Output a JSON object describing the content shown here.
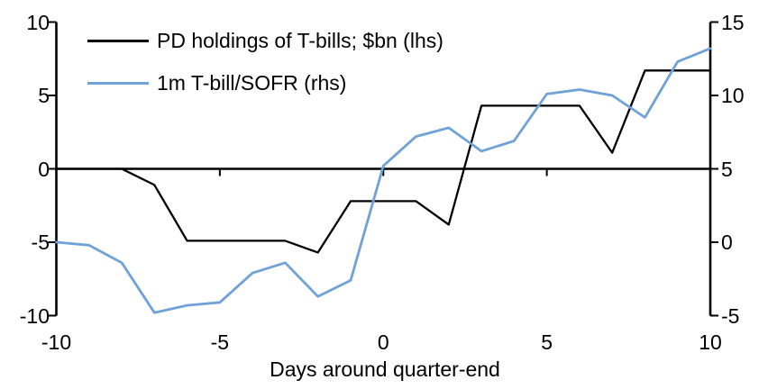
{
  "chart_data": {
    "type": "line",
    "title": "",
    "xlabel": "Days around quarter-end",
    "background": "#FFFFFF",
    "axis_color": "#000000",
    "grid": false,
    "legend_position": "top-left",
    "x": [
      -10,
      -9,
      -8,
      -7,
      -6,
      -5,
      -4,
      -3,
      -2,
      -1,
      0,
      1,
      2,
      3,
      4,
      5,
      6,
      7,
      8,
      9,
      10
    ],
    "x_range": [
      -10,
      10
    ],
    "x_ticks": [
      -10,
      -5,
      0,
      5,
      10
    ],
    "x_tick_labels": [
      "-10",
      "-5",
      "0",
      "5",
      "10"
    ],
    "left_axis": {
      "range": [
        -10,
        10
      ],
      "tick_values": [
        10,
        5,
        0,
        -5,
        -10
      ],
      "tick_labels": [
        "10",
        "5",
        "0",
        "-5",
        "-10"
      ]
    },
    "right_axis": {
      "range": [
        -5,
        15
      ],
      "tick_values": [
        15,
        10,
        5,
        0,
        -5
      ],
      "tick_labels": [
        "15",
        "10",
        "5",
        "0",
        "-5"
      ]
    },
    "series": [
      {
        "name": "PD holdings of T-bills; $bn",
        "legend_label": "PD holdings of T-bills; $bn (lhs)",
        "axis": "left",
        "color": "#000000",
        "stroke_width": 2.3,
        "values": [
          0.0,
          0.0,
          0.0,
          -1.1,
          -4.9,
          -4.9,
          -4.9,
          -4.9,
          -5.7,
          -2.2,
          -2.2,
          -2.2,
          -3.8,
          4.3,
          4.3,
          4.3,
          4.3,
          1.1,
          6.7,
          6.7,
          6.7
        ]
      },
      {
        "name": "1m T-bill/SOFR",
        "legend_label": "1m T-bill/SOFR (rhs)",
        "axis": "right",
        "color": "#6FA2D8",
        "stroke_width": 2.8,
        "values": [
          0.0,
          -0.2,
          -1.4,
          -4.8,
          -4.3,
          -4.1,
          -2.1,
          -1.4,
          -3.7,
          -2.6,
          5.2,
          7.2,
          7.8,
          6.2,
          6.9,
          10.1,
          10.4,
          10.0,
          8.5,
          12.3,
          13.2
        ]
      }
    ]
  }
}
